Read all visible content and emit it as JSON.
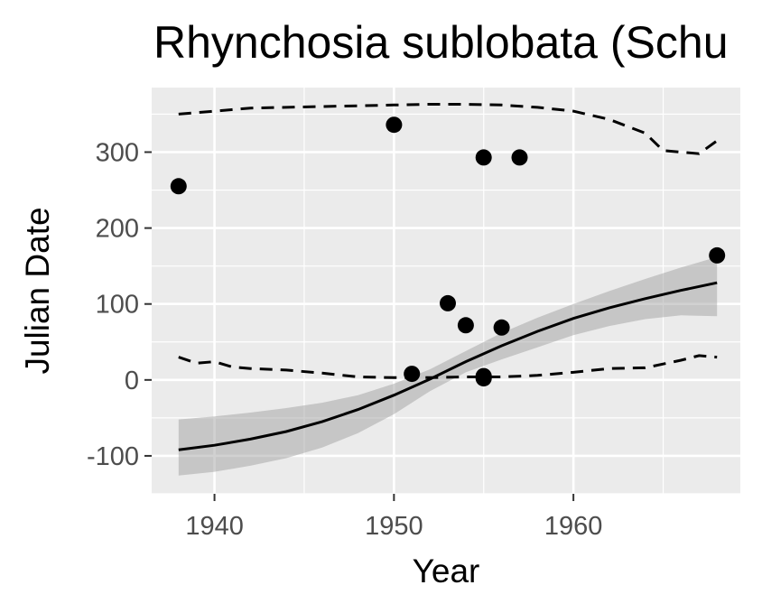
{
  "chart_data": {
    "type": "scatter",
    "title": "Rhynchosia sublobata (Schu",
    "xlabel": "Year",
    "ylabel": "Julian Date",
    "xlim": [
      1936.5,
      1969.3
    ],
    "ylim": [
      -150,
      385
    ],
    "x_ticks": [
      1940,
      1950,
      1960
    ],
    "y_ticks": [
      -100,
      0,
      100,
      200,
      300
    ],
    "x_tick_labels": [
      "1940",
      "1950",
      "1960"
    ],
    "y_tick_labels": [
      "-100",
      "0",
      "100",
      "200",
      "300"
    ],
    "grid": true,
    "points": [
      {
        "x": 1938,
        "y": 255
      },
      {
        "x": 1950,
        "y": 336
      },
      {
        "x": 1951,
        "y": 8
      },
      {
        "x": 1953,
        "y": 101
      },
      {
        "x": 1954,
        "y": 72
      },
      {
        "x": 1955,
        "y": 293
      },
      {
        "x": 1955,
        "y": 5
      },
      {
        "x": 1955,
        "y": 2
      },
      {
        "x": 1956,
        "y": 69
      },
      {
        "x": 1957,
        "y": 293
      },
      {
        "x": 1968,
        "y": 164
      }
    ],
    "trend_line": {
      "x": [
        1938,
        1940,
        1942,
        1944,
        1946,
        1948,
        1950,
        1952,
        1954,
        1956,
        1958,
        1960,
        1962,
        1964,
        1966,
        1968
      ],
      "y": [
        -92,
        -86,
        -78,
        -68,
        -55,
        -39,
        -20,
        1,
        24,
        45,
        64,
        81,
        95,
        107,
        118,
        128
      ]
    },
    "confidence_band": {
      "x": [
        1938,
        1940,
        1942,
        1944,
        1946,
        1948,
        1950,
        1952,
        1954,
        1956,
        1958,
        1960,
        1962,
        1964,
        1966,
        1968
      ],
      "upper": [
        -52,
        -48,
        -43,
        -37,
        -30,
        -20,
        -5,
        14,
        38,
        62,
        82,
        100,
        117,
        133,
        148,
        162
      ],
      "lower": [
        -126,
        -121,
        -113,
        -103,
        -89,
        -70,
        -45,
        -15,
        10,
        27,
        43,
        59,
        71,
        80,
        85,
        84
      ]
    },
    "upper_dashed": {
      "x": [
        1938,
        1940,
        1942,
        1944,
        1946,
        1948,
        1950,
        1952,
        1954,
        1956,
        1958,
        1960,
        1962,
        1964,
        1965,
        1967,
        1968
      ],
      "y": [
        350,
        354,
        358,
        359,
        360,
        361,
        362,
        363,
        363,
        362,
        359,
        354,
        343,
        325,
        302,
        298,
        315
      ]
    },
    "lower_dashed": {
      "x": [
        1938,
        1939,
        1940,
        1941,
        1942,
        1944,
        1946,
        1948,
        1950,
        1952,
        1954,
        1956,
        1958,
        1960,
        1962,
        1964,
        1966,
        1967,
        1968
      ],
      "y": [
        30,
        22,
        24,
        17,
        15,
        13,
        9,
        4,
        3,
        3,
        4,
        4,
        6,
        10,
        15,
        16,
        26,
        32,
        30
      ]
    }
  }
}
